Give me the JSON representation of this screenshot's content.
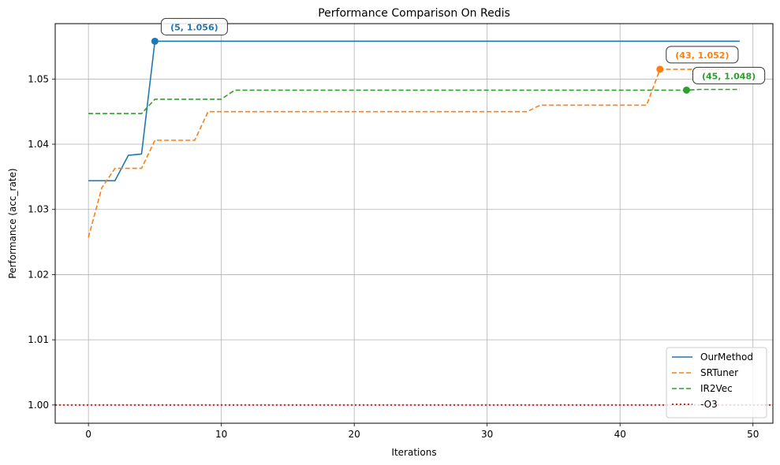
{
  "chart_data": {
    "type": "line",
    "title": "Performance Comparison On Redis",
    "xlabel": "Iterations",
    "ylabel": "Performance (acc_rate)",
    "xlim": [
      -2.5,
      51.5
    ],
    "ylim": [
      0.9972,
      1.0585
    ],
    "x_ticks": [
      "0",
      "10",
      "20",
      "30",
      "40",
      "50"
    ],
    "x_tick_values": [
      0,
      10,
      20,
      30,
      40,
      50
    ],
    "y_ticks": [
      "1.00",
      "1.01",
      "1.02",
      "1.03",
      "1.04",
      "1.05"
    ],
    "y_tick_values": [
      1.0,
      1.01,
      1.02,
      1.03,
      1.04,
      1.05
    ],
    "grid": true,
    "legend_position": "bottom-right",
    "series": [
      {
        "name": "OurMethod",
        "color": "#1f77b4",
        "style": "solid",
        "x": [
          0,
          1,
          2,
          3,
          4,
          5,
          6,
          7,
          8,
          9,
          10,
          11,
          12,
          13,
          14,
          15,
          16,
          17,
          18,
          19,
          20,
          21,
          22,
          23,
          24,
          25,
          26,
          27,
          28,
          29,
          30,
          31,
          32,
          33,
          34,
          35,
          36,
          37,
          38,
          39,
          40,
          41,
          42,
          43,
          44,
          45,
          46,
          47,
          48,
          49
        ],
        "values": [
          1.0344,
          1.0344,
          1.0344,
          1.0383,
          1.0385,
          1.0558,
          1.0558,
          1.0558,
          1.0558,
          1.0558,
          1.0558,
          1.0558,
          1.0558,
          1.0558,
          1.0558,
          1.0558,
          1.0558,
          1.0558,
          1.0558,
          1.0558,
          1.0558,
          1.0558,
          1.0558,
          1.0558,
          1.0558,
          1.0558,
          1.0558,
          1.0558,
          1.0558,
          1.0558,
          1.0558,
          1.0558,
          1.0558,
          1.0558,
          1.0558,
          1.0558,
          1.0558,
          1.0558,
          1.0558,
          1.0558,
          1.0558,
          1.0558,
          1.0558,
          1.0558,
          1.0558,
          1.0558,
          1.0558,
          1.0558,
          1.0558,
          1.0558
        ]
      },
      {
        "name": "SRTuner",
        "color": "#ff7f0e",
        "style": "dashed",
        "x": [
          0,
          1,
          2,
          3,
          4,
          5,
          6,
          7,
          8,
          9,
          10,
          11,
          12,
          13,
          14,
          15,
          16,
          17,
          18,
          19,
          20,
          21,
          22,
          23,
          24,
          25,
          26,
          27,
          28,
          29,
          30,
          31,
          32,
          33,
          34,
          35,
          36,
          37,
          38,
          39,
          40,
          41,
          42,
          43,
          44,
          45,
          46,
          47,
          48,
          49
        ],
        "values": [
          1.0257,
          1.0333,
          1.0363,
          1.0363,
          1.0363,
          1.0406,
          1.0406,
          1.0406,
          1.0406,
          1.045,
          1.045,
          1.045,
          1.045,
          1.045,
          1.045,
          1.045,
          1.045,
          1.045,
          1.045,
          1.045,
          1.045,
          1.045,
          1.045,
          1.045,
          1.045,
          1.045,
          1.045,
          1.045,
          1.045,
          1.045,
          1.045,
          1.045,
          1.045,
          1.045,
          1.046,
          1.046,
          1.046,
          1.046,
          1.046,
          1.046,
          1.046,
          1.046,
          1.046,
          1.0515,
          1.0515,
          1.0515,
          1.0515,
          1.0515,
          1.0515,
          1.0515
        ]
      },
      {
        "name": "IR2Vec",
        "color": "#2ca02c",
        "style": "dashed",
        "x": [
          0,
          1,
          2,
          3,
          4,
          5,
          6,
          7,
          8,
          9,
          10,
          11,
          12,
          13,
          14,
          15,
          16,
          17,
          18,
          19,
          20,
          21,
          22,
          23,
          24,
          25,
          26,
          27,
          28,
          29,
          30,
          31,
          32,
          33,
          34,
          35,
          36,
          37,
          38,
          39,
          40,
          41,
          42,
          43,
          44,
          45,
          46,
          47,
          48,
          49
        ],
        "values": [
          1.0447,
          1.0447,
          1.0447,
          1.0447,
          1.0447,
          1.0469,
          1.0469,
          1.0469,
          1.0469,
          1.0469,
          1.0469,
          1.0483,
          1.0483,
          1.0483,
          1.0483,
          1.0483,
          1.0483,
          1.0483,
          1.0483,
          1.0483,
          1.0483,
          1.0483,
          1.0483,
          1.0483,
          1.0483,
          1.0483,
          1.0483,
          1.0483,
          1.0483,
          1.0483,
          1.0483,
          1.0483,
          1.0483,
          1.0483,
          1.0483,
          1.0483,
          1.0483,
          1.0483,
          1.0483,
          1.0483,
          1.0483,
          1.0483,
          1.0483,
          1.0483,
          1.0483,
          1.0483,
          1.0484,
          1.0484,
          1.0484,
          1.0484
        ]
      },
      {
        "name": "-O3",
        "color": "#d62728",
        "style": "dotted",
        "horizontal": 1.0
      }
    ],
    "annotations": [
      {
        "text": "(5, 1.056)",
        "x": 5,
        "y": 1.0558,
        "color": "#1f77b4"
      },
      {
        "text": "(43, 1.052)",
        "x": 43,
        "y": 1.0515,
        "color": "#ff7f0e"
      },
      {
        "text": "(45, 1.048)",
        "x": 45,
        "y": 1.0483,
        "color": "#2ca02c"
      }
    ]
  }
}
